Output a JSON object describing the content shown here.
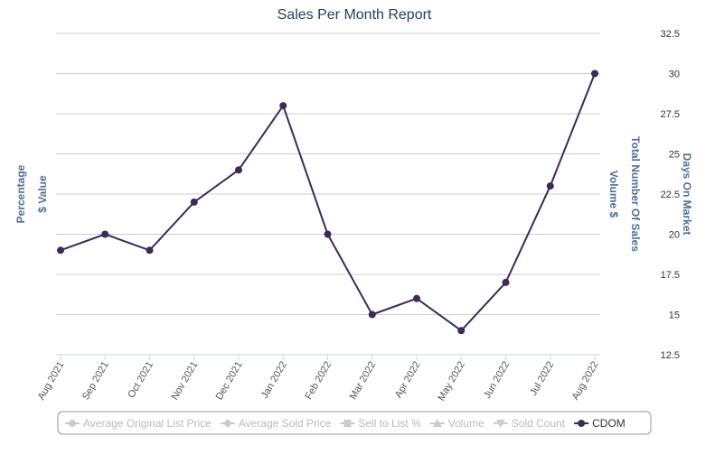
{
  "chart_data": {
    "type": "line",
    "title": "Sales Per Month Report",
    "categories": [
      "Aug 2021",
      "Sep 2021",
      "Oct 2021",
      "Nov 2021",
      "Dec 2021",
      "Jan 2022",
      "Feb 2022",
      "Mar 2022",
      "Apr 2022",
      "May 2022",
      "Jun 2022",
      "Jul 2022",
      "Aug 2022"
    ],
    "series": [
      {
        "name": "CDOM",
        "values": [
          19,
          20,
          19,
          22,
          24,
          28,
          20,
          15,
          16,
          14,
          17,
          23,
          30
        ]
      }
    ],
    "y_right": {
      "title": "Days On Market",
      "ylim": [
        12.5,
        32.5
      ],
      "ticks": [
        "12.5",
        "15",
        "17.5",
        "20",
        "22.5",
        "25",
        "27.5",
        "30",
        "32.5"
      ]
    },
    "other_axis_titles": {
      "left_outer": "Percentage",
      "left_inner": "$ Value",
      "right_inner": "Volume $",
      "right_middle": "Total Number Of Sales"
    },
    "grid": true,
    "line_color": "#3f2a56",
    "axis_title_color": "#4e6f93",
    "legend": {
      "placement": "bottom",
      "items": [
        {
          "label": "Average Original List Price",
          "icon": "circle",
          "active": false
        },
        {
          "label": "Average Sold Price",
          "icon": "diamond",
          "active": false
        },
        {
          "label": "Sell to List %",
          "icon": "square",
          "active": false
        },
        {
          "label": "Volume",
          "icon": "triangle",
          "active": false
        },
        {
          "label": "Sold Count",
          "icon": "triangle-down",
          "active": false
        },
        {
          "label": "CDOM",
          "icon": "circle",
          "active": true
        }
      ]
    }
  }
}
